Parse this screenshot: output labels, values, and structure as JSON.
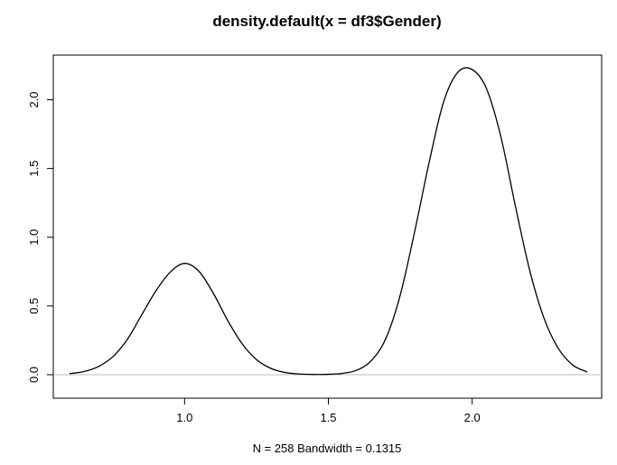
{
  "chart_data": {
    "type": "line",
    "title": "density.default(x = df3$Gender)",
    "xlabel": "N = 258   Bandwidth = 0.1315",
    "ylabel": "",
    "xlim": [
      0.6,
      2.4
    ],
    "ylim": [
      0,
      2.22
    ],
    "x_ticks": [
      1.0,
      1.5,
      2.0
    ],
    "x_tick_labels": [
      "1.0",
      "1.5",
      "2.0"
    ],
    "y_ticks": [
      0.0,
      0.5,
      1.0,
      1.5,
      2.0
    ],
    "y_tick_labels": [
      "0.0",
      "0.5",
      "1.0",
      "1.5",
      "2.0"
    ],
    "grid": false,
    "legend": "none",
    "baseline": 0,
    "colors": {
      "line": "#000000",
      "baseline": "#bebebe",
      "box": "#000000"
    },
    "series": [
      {
        "x": [
          0.6,
          0.65,
          0.7,
          0.75,
          0.8,
          0.85,
          0.9,
          0.95,
          1.0,
          1.05,
          1.1,
          1.15,
          1.2,
          1.25,
          1.3,
          1.35,
          1.4,
          1.45,
          1.5,
          1.55,
          1.6,
          1.65,
          1.7,
          1.75,
          1.8,
          1.85,
          1.9,
          1.95,
          2.0,
          2.05,
          2.1,
          2.15,
          2.2,
          2.25,
          2.3,
          2.35,
          2.4
        ],
        "y": [
          0.008,
          0.023,
          0.059,
          0.13,
          0.254,
          0.432,
          0.609,
          0.746,
          0.81,
          0.752,
          0.592,
          0.394,
          0.225,
          0.11,
          0.046,
          0.016,
          0.005,
          0.002,
          0.003,
          0.01,
          0.034,
          0.104,
          0.264,
          0.58,
          1.04,
          1.54,
          1.98,
          2.2,
          2.22,
          2.08,
          1.73,
          1.23,
          0.76,
          0.41,
          0.19,
          0.07,
          0.02
        ]
      }
    ]
  }
}
